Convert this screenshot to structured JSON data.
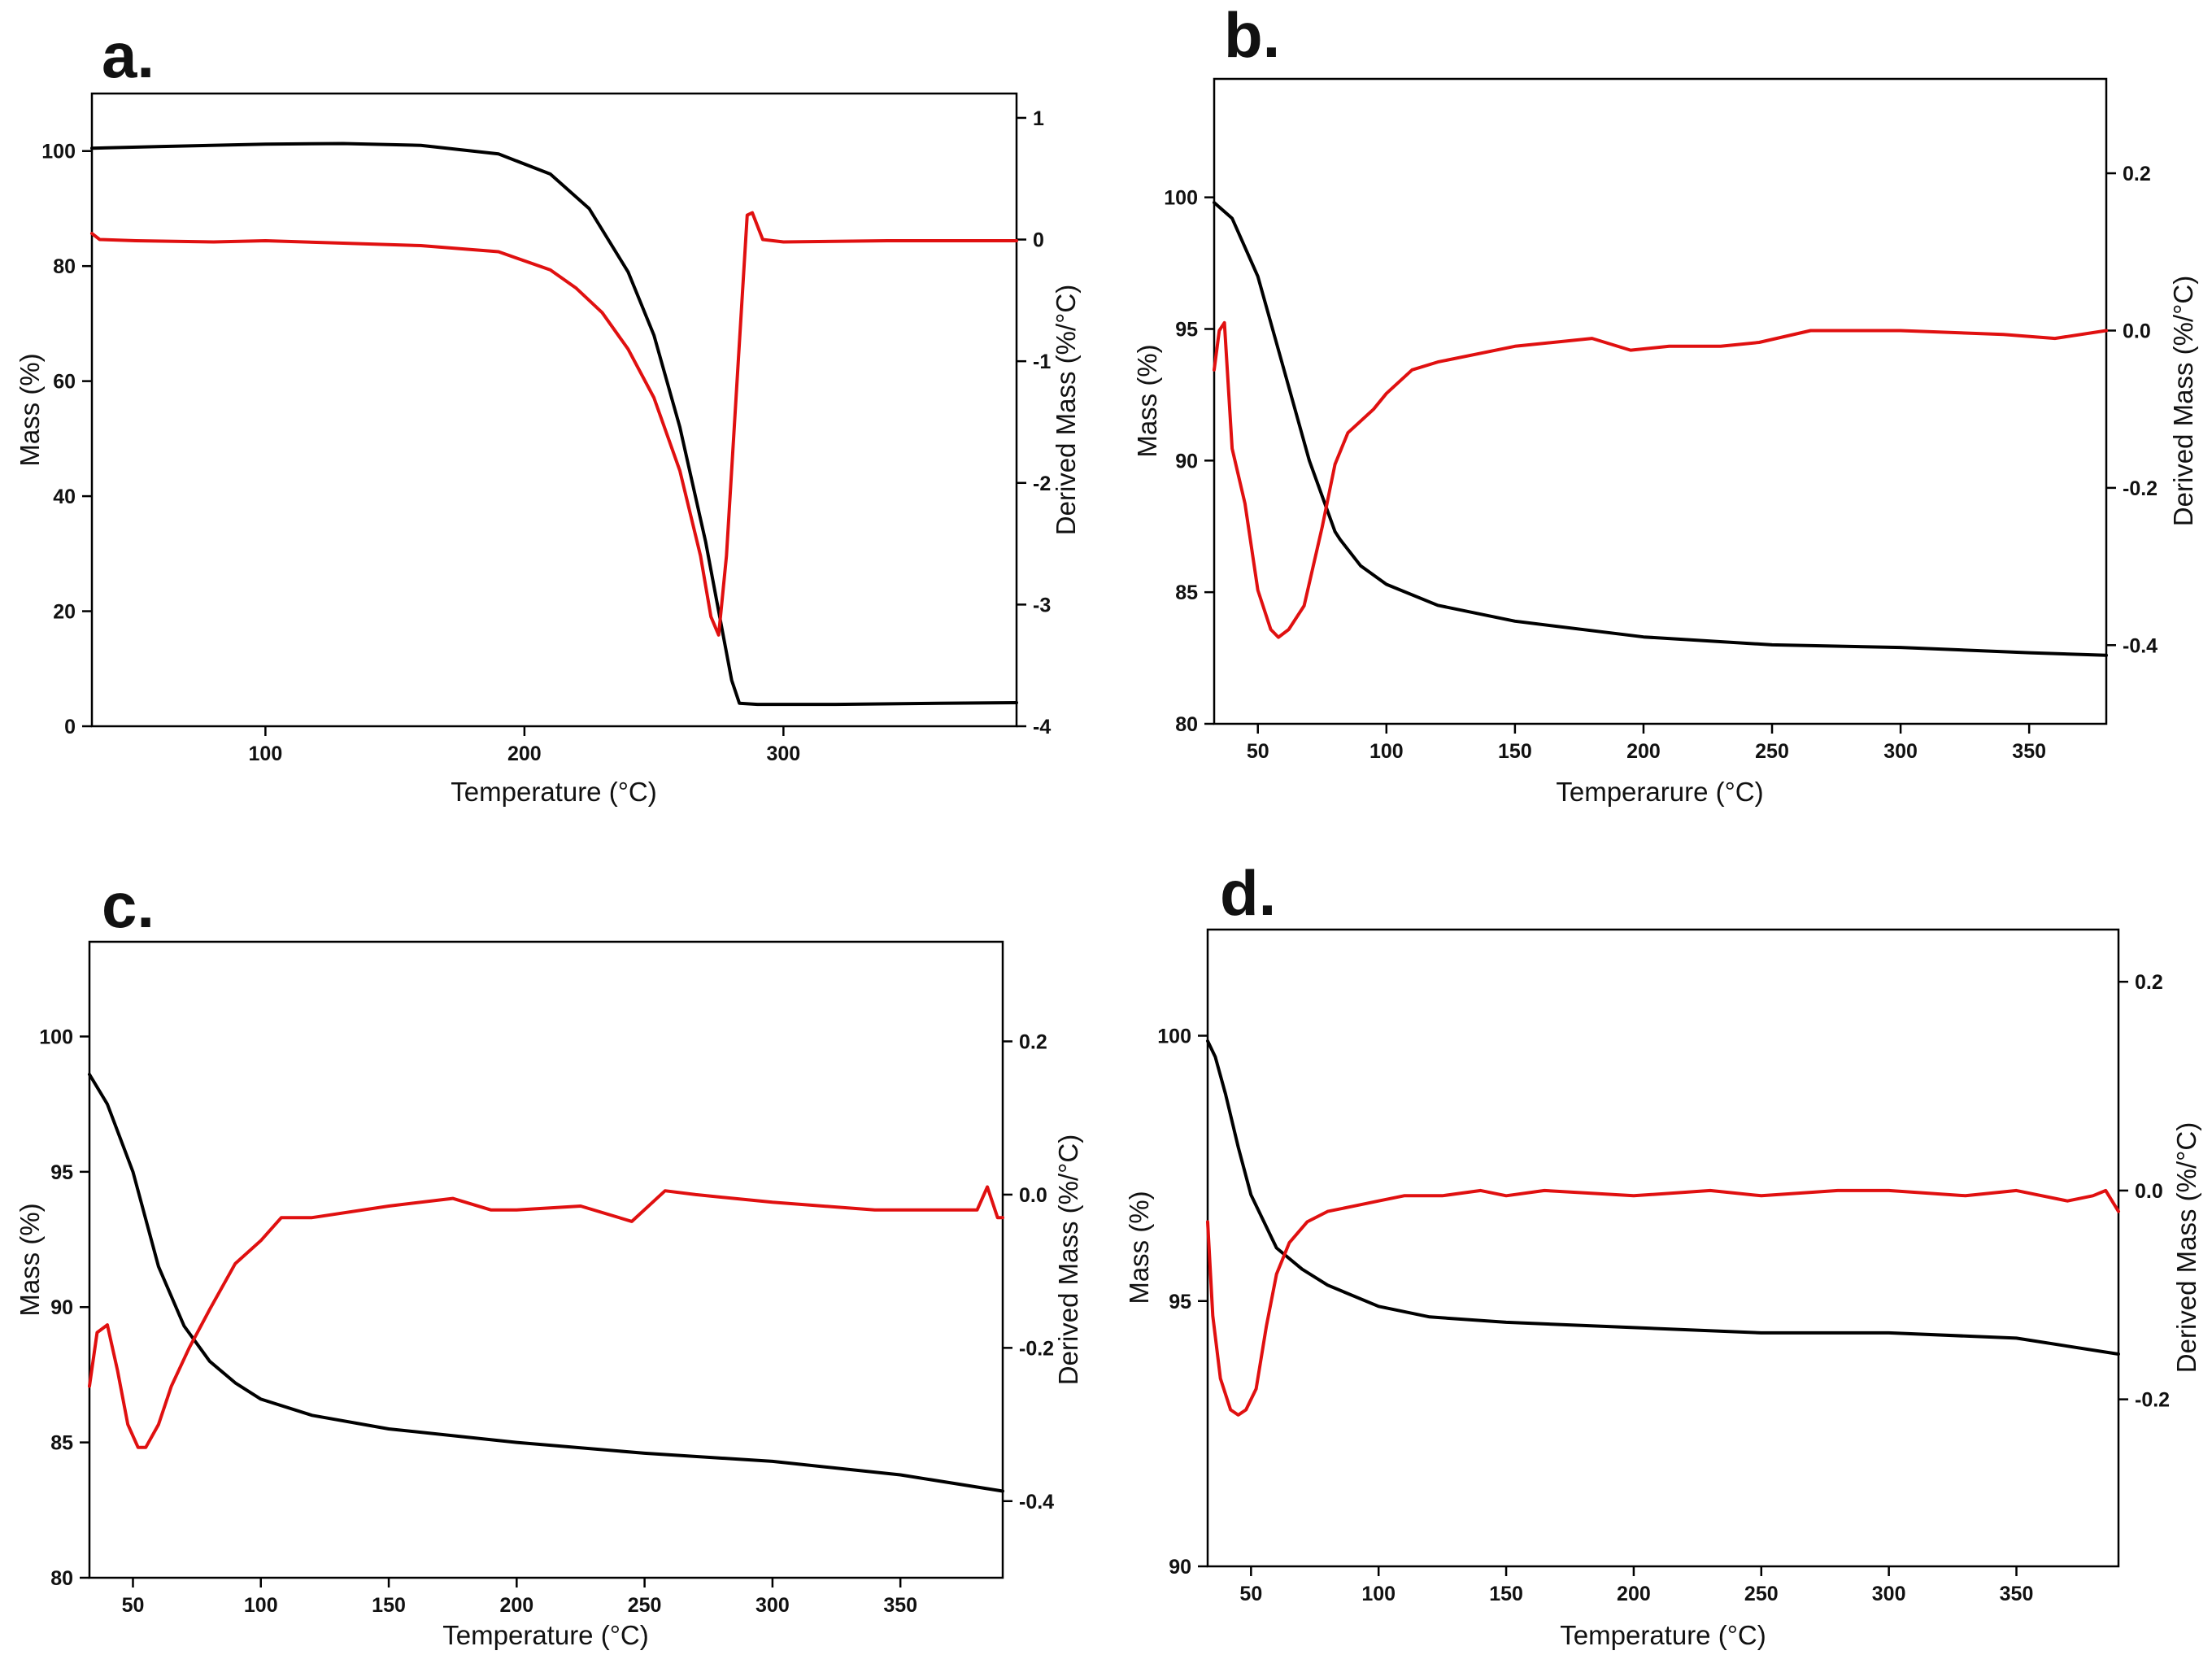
{
  "figure": {
    "panels": [
      {
        "label": "a.",
        "xlabel": "Temperature (°C)",
        "ylabel_left": "Mass (%)",
        "ylabel_right": "Derived Mass (%/°C)"
      },
      {
        "label": "b.",
        "xlabel": "Temperarure (°C)",
        "ylabel_left": "Mass (%)",
        "ylabel_right": "Derived Mass (%/°C)"
      },
      {
        "label": "c.",
        "xlabel": "Temperature (°C)",
        "ylabel_left": "Mass (%)",
        "ylabel_right": "Derived Mass (%/°C)"
      },
      {
        "label": "d.",
        "xlabel": "Temperature (°C)",
        "ylabel_left": "Mass (%)",
        "ylabel_right": "Derived Mass (%/°C)"
      }
    ]
  },
  "chart_data": [
    {
      "type": "line",
      "title": "a.",
      "xlabel": "Temperature (°C)",
      "ylabel": "Mass (%)",
      "y2label": "Derived Mass (%/°C)",
      "xlim": [
        33,
        390
      ],
      "ylim": [
        0,
        110
      ],
      "y2lim": [
        -4,
        1.2
      ],
      "xticks": [
        100,
        200,
        300
      ],
      "xticklabels": [
        "100",
        "200",
        "300"
      ],
      "yticks": [
        0,
        20,
        40,
        60,
        80,
        100
      ],
      "yticklabels": [
        "0",
        "20",
        "40",
        "60",
        "80",
        "100"
      ],
      "y2ticks": [
        1,
        0,
        -1,
        -2,
        -3,
        -4
      ],
      "y2ticklabels": [
        "1",
        "0",
        "-1",
        "-2",
        "-3",
        "-4"
      ],
      "series": [
        {
          "name": "Mass",
          "axis": "left",
          "color": "#000000",
          "x": [
            33,
            60,
            100,
            130,
            160,
            190,
            210,
            225,
            240,
            250,
            260,
            270,
            275,
            280,
            283,
            290,
            320,
            360,
            390
          ],
          "y": [
            100.5,
            100.8,
            101.2,
            101.3,
            101.0,
            99.5,
            96.0,
            90.0,
            79.0,
            68.0,
            52.0,
            32.0,
            20.0,
            8.0,
            4.0,
            3.8,
            3.8,
            4.0,
            4.1
          ]
        },
        {
          "name": "Derived Mass",
          "axis": "right",
          "color": "#e01010",
          "x": [
            33,
            36,
            50,
            80,
            100,
            130,
            160,
            190,
            210,
            220,
            230,
            240,
            250,
            260,
            268,
            272,
            275,
            278,
            282,
            286,
            288,
            292,
            300,
            340,
            390
          ],
          "y": [
            0.05,
            0.0,
            -0.01,
            -0.02,
            -0.01,
            -0.03,
            -0.05,
            -0.1,
            -0.25,
            -0.4,
            -0.6,
            -0.9,
            -1.3,
            -1.9,
            -2.6,
            -3.1,
            -3.25,
            -2.6,
            -1.2,
            0.2,
            0.22,
            0.0,
            -0.02,
            -0.01,
            -0.01
          ]
        }
      ]
    },
    {
      "type": "line",
      "title": "b.",
      "xlabel": "Temperarure (°C)",
      "ylabel": "Mass (%)",
      "y2label": "Derived Mass (%/°C)",
      "xlim": [
        33,
        380
      ],
      "ylim": [
        80,
        104.5
      ],
      "y2lim": [
        -0.5,
        0.32
      ],
      "xticks": [
        50,
        100,
        150,
        200,
        250,
        300,
        350
      ],
      "xticklabels": [
        "50",
        "100",
        "150",
        "200",
        "250",
        "300",
        "350"
      ],
      "yticks": [
        80,
        85,
        90,
        95,
        100
      ],
      "yticklabels": [
        "80",
        "85",
        "90",
        "95",
        "100"
      ],
      "y2ticks": [
        0.2,
        0.0,
        -0.2,
        -0.4
      ],
      "y2ticklabels": [
        "0.2",
        "0.0",
        "-0.2",
        "-0.4"
      ],
      "series": [
        {
          "name": "Mass",
          "axis": "left",
          "color": "#000000",
          "x": [
            33,
            40,
            50,
            60,
            70,
            80,
            82,
            90,
            100,
            120,
            150,
            200,
            250,
            300,
            350,
            380
          ],
          "y": [
            99.8,
            99.2,
            97.0,
            93.5,
            90.0,
            87.3,
            87.0,
            86.0,
            85.3,
            84.5,
            83.9,
            83.3,
            83.0,
            82.9,
            82.7,
            82.6
          ]
        },
        {
          "name": "Derived Mass",
          "axis": "right",
          "color": "#e01010",
          "x": [
            33,
            35,
            37,
            40,
            45,
            50,
            55,
            58,
            62,
            68,
            75,
            80,
            85,
            95,
            100,
            110,
            120,
            150,
            180,
            195,
            210,
            230,
            245,
            265,
            300,
            340,
            360,
            380
          ],
          "y": [
            -0.05,
            0.0,
            0.01,
            -0.15,
            -0.22,
            -0.33,
            -0.38,
            -0.39,
            -0.38,
            -0.35,
            -0.25,
            -0.17,
            -0.13,
            -0.1,
            -0.08,
            -0.05,
            -0.04,
            -0.02,
            -0.01,
            -0.025,
            -0.02,
            -0.02,
            -0.015,
            0.0,
            0.0,
            -0.005,
            -0.01,
            0.0
          ]
        }
      ]
    },
    {
      "type": "line",
      "title": "c.",
      "xlabel": "Temperature (°C)",
      "ylabel": "Mass (%)",
      "y2label": "Derived Mass (%/°C)",
      "xlim": [
        33,
        390
      ],
      "ylim": [
        80,
        103.5
      ],
      "y2lim": [
        -0.5,
        0.33
      ],
      "xticks": [
        50,
        100,
        150,
        200,
        250,
        300,
        350
      ],
      "xticklabels": [
        "50",
        "100",
        "150",
        "200",
        "250",
        "300",
        "350"
      ],
      "yticks": [
        80,
        85,
        90,
        95,
        100
      ],
      "yticklabels": [
        "80",
        "85",
        "90",
        "95",
        "100"
      ],
      "y2ticks": [
        0.2,
        0.0,
        -0.2,
        -0.4
      ],
      "y2ticklabels": [
        "0.2",
        "0.0",
        "-0.2",
        "-0.4"
      ],
      "series": [
        {
          "name": "Mass",
          "axis": "left",
          "color": "#000000",
          "x": [
            33,
            40,
            50,
            60,
            70,
            80,
            90,
            100,
            120,
            150,
            200,
            250,
            300,
            350,
            390
          ],
          "y": [
            98.6,
            97.5,
            95.0,
            91.5,
            89.3,
            88.0,
            87.2,
            86.6,
            86.0,
            85.5,
            85.0,
            84.6,
            84.3,
            83.8,
            83.2
          ]
        },
        {
          "name": "Derived Mass",
          "axis": "right",
          "color": "#e01010",
          "x": [
            33,
            36,
            40,
            44,
            48,
            52,
            55,
            60,
            65,
            72,
            80,
            90,
            100,
            108,
            120,
            150,
            175,
            190,
            200,
            225,
            245,
            258,
            270,
            300,
            340,
            380,
            384,
            388,
            390
          ],
          "y": [
            -0.25,
            -0.18,
            -0.17,
            -0.23,
            -0.3,
            -0.33,
            -0.33,
            -0.3,
            -0.25,
            -0.2,
            -0.15,
            -0.09,
            -0.06,
            -0.03,
            -0.03,
            -0.015,
            -0.005,
            -0.02,
            -0.02,
            -0.015,
            -0.035,
            0.005,
            0.0,
            -0.01,
            -0.02,
            -0.02,
            0.01,
            -0.03,
            -0.03
          ]
        }
      ]
    },
    {
      "type": "line",
      "title": "d.",
      "xlabel": "Temperature (°C)",
      "ylabel": "Mass (%)",
      "y2label": "Derived Mass (%/°C)",
      "xlim": [
        33,
        390
      ],
      "ylim": [
        90,
        102
      ],
      "y2lim": [
        -0.36,
        0.25
      ],
      "xticks": [
        50,
        100,
        150,
        200,
        250,
        300,
        350
      ],
      "xticklabels": [
        "50",
        "100",
        "150",
        "200",
        "250",
        "300",
        "350"
      ],
      "yticks": [
        90,
        95,
        100
      ],
      "yticklabels": [
        "90",
        "95",
        "100"
      ],
      "y2ticks": [
        0.2,
        0.0,
        -0.2
      ],
      "y2ticklabels": [
        "0.2",
        "0.0",
        "-0.2"
      ],
      "series": [
        {
          "name": "Mass",
          "axis": "left",
          "color": "#000000",
          "x": [
            33,
            36,
            40,
            45,
            50,
            55,
            60,
            70,
            80,
            100,
            120,
            150,
            200,
            250,
            300,
            350,
            390
          ],
          "y": [
            99.9,
            99.6,
            98.9,
            97.9,
            97.0,
            96.5,
            96.0,
            95.6,
            95.3,
            94.9,
            94.7,
            94.6,
            94.5,
            94.4,
            94.4,
            94.3,
            94.0
          ]
        },
        {
          "name": "Derived Mass",
          "axis": "right",
          "color": "#e01010",
          "x": [
            33,
            35,
            38,
            42,
            45,
            48,
            52,
            56,
            60,
            65,
            72,
            80,
            90,
            100,
            110,
            125,
            140,
            150,
            165,
            200,
            230,
            250,
            280,
            300,
            330,
            350,
            370,
            380,
            385,
            390
          ],
          "y": [
            -0.03,
            -0.12,
            -0.18,
            -0.21,
            -0.215,
            -0.21,
            -0.19,
            -0.13,
            -0.08,
            -0.05,
            -0.03,
            -0.02,
            -0.015,
            -0.01,
            -0.005,
            -0.005,
            0.0,
            -0.005,
            0.0,
            -0.005,
            0.0,
            -0.005,
            0.0,
            0.0,
            -0.005,
            0.0,
            -0.01,
            -0.005,
            0.0,
            -0.02
          ]
        }
      ]
    }
  ]
}
